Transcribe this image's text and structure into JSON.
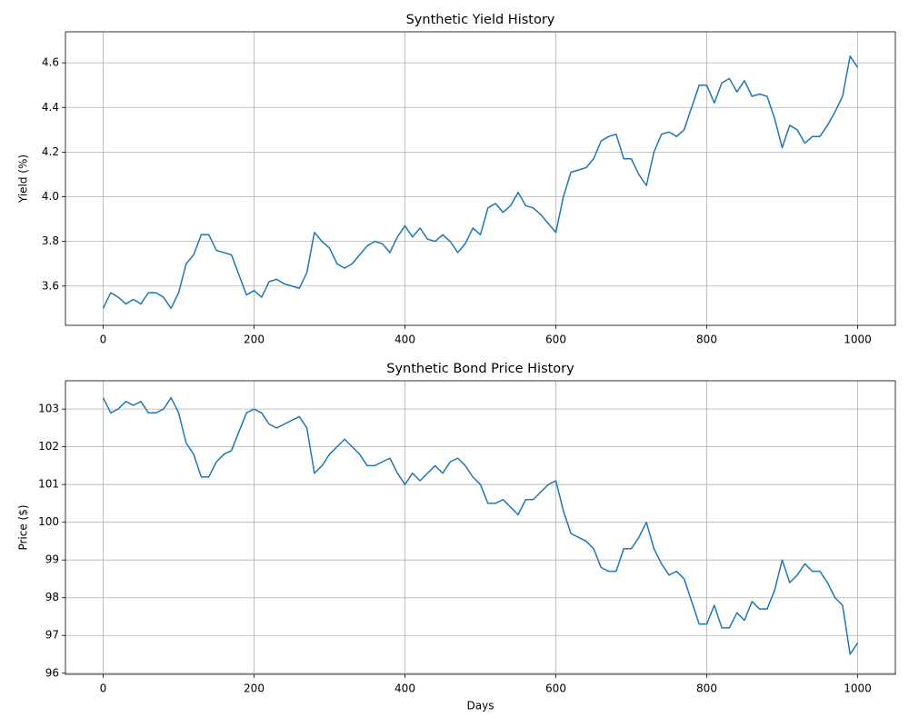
{
  "chart_data": [
    {
      "type": "line",
      "title": "Synthetic Yield History",
      "ylabel": "Yield (%)",
      "color": "#1f77b4",
      "grid": true,
      "x": [
        0,
        10,
        20,
        30,
        40,
        50,
        60,
        70,
        80,
        90,
        100,
        110,
        120,
        130,
        140,
        150,
        160,
        170,
        180,
        190,
        200,
        210,
        220,
        230,
        240,
        250,
        260,
        270,
        280,
        290,
        300,
        310,
        320,
        330,
        340,
        350,
        360,
        370,
        380,
        390,
        400,
        410,
        420,
        430,
        440,
        450,
        460,
        470,
        480,
        490,
        500,
        510,
        520,
        530,
        540,
        550,
        560,
        570,
        580,
        590,
        600,
        610,
        620,
        630,
        640,
        650,
        660,
        670,
        680,
        690,
        700,
        710,
        720,
        730,
        740,
        750,
        760,
        770,
        780,
        790,
        800,
        810,
        820,
        830,
        840,
        850,
        860,
        870,
        880,
        890,
        900,
        910,
        920,
        930,
        940,
        950,
        960,
        970,
        980,
        990,
        1000
      ],
      "values": [
        3.5,
        3.57,
        3.55,
        3.52,
        3.54,
        3.52,
        3.57,
        3.57,
        3.55,
        3.5,
        3.57,
        3.7,
        3.74,
        3.83,
        3.83,
        3.76,
        3.75,
        3.74,
        3.65,
        3.56,
        3.58,
        3.55,
        3.62,
        3.63,
        3.61,
        3.6,
        3.59,
        3.66,
        3.84,
        3.8,
        3.77,
        3.7,
        3.68,
        3.7,
        3.74,
        3.78,
        3.8,
        3.79,
        3.75,
        3.82,
        3.87,
        3.82,
        3.86,
        3.81,
        3.8,
        3.83,
        3.8,
        3.75,
        3.79,
        3.86,
        3.83,
        3.95,
        3.97,
        3.93,
        3.96,
        4.02,
        3.96,
        3.95,
        3.92,
        3.88,
        3.84,
        4.0,
        4.11,
        4.12,
        4.13,
        4.17,
        4.25,
        4.27,
        4.28,
        4.17,
        4.17,
        4.1,
        4.05,
        4.2,
        4.28,
        4.29,
        4.27,
        4.3,
        4.4,
        4.5,
        4.5,
        4.42,
        4.51,
        4.53,
        4.47,
        4.52,
        4.45,
        4.46,
        4.45,
        4.35,
        4.22,
        4.32,
        4.3,
        4.24,
        4.27,
        4.27,
        4.32,
        4.38,
        4.45,
        4.63,
        4.58
      ],
      "xlim": [
        -50,
        1050
      ],
      "xticks": [
        0,
        200,
        400,
        600,
        800,
        1000
      ],
      "ylim": [
        3.424,
        4.739
      ],
      "yticks": [
        3.6,
        3.8,
        {
          "value": 4.0,
          "label": "4.0"
        },
        4.2,
        4.4,
        4.6
      ]
    },
    {
      "type": "line",
      "title": "Synthetic Bond Price History",
      "xlabel": "Days",
      "ylabel": "Price ($)",
      "color": "#1f77b4",
      "grid": true,
      "x": [
        0,
        10,
        20,
        30,
        40,
        50,
        60,
        70,
        80,
        90,
        100,
        110,
        120,
        130,
        140,
        150,
        160,
        170,
        180,
        190,
        200,
        210,
        220,
        230,
        240,
        250,
        260,
        270,
        280,
        290,
        300,
        310,
        320,
        330,
        340,
        350,
        360,
        370,
        380,
        390,
        400,
        410,
        420,
        430,
        440,
        450,
        460,
        470,
        480,
        490,
        500,
        510,
        520,
        530,
        540,
        550,
        560,
        570,
        580,
        590,
        600,
        610,
        620,
        630,
        640,
        650,
        660,
        670,
        680,
        690,
        700,
        710,
        720,
        730,
        740,
        750,
        760,
        770,
        780,
        790,
        800,
        810,
        820,
        830,
        840,
        850,
        860,
        870,
        880,
        890,
        900,
        910,
        920,
        930,
        940,
        950,
        960,
        970,
        980,
        990,
        1000
      ],
      "values": [
        103.3,
        102.9,
        103.0,
        103.2,
        103.1,
        103.2,
        102.9,
        102.9,
        103.0,
        103.3,
        102.9,
        102.1,
        101.8,
        101.2,
        101.2,
        101.6,
        101.8,
        101.9,
        102.4,
        102.9,
        103.0,
        102.9,
        102.6,
        102.5,
        102.6,
        102.7,
        102.8,
        102.5,
        101.3,
        101.5,
        101.8,
        102.0,
        102.2,
        102.0,
        101.8,
        101.5,
        101.5,
        101.6,
        101.7,
        101.3,
        101.0,
        101.3,
        101.1,
        101.3,
        101.5,
        101.3,
        101.6,
        101.7,
        101.5,
        101.2,
        101.0,
        100.5,
        100.5,
        100.6,
        100.4,
        100.2,
        100.6,
        100.6,
        100.8,
        101.0,
        101.1,
        100.3,
        99.7,
        99.6,
        99.5,
        99.3,
        98.8,
        98.7,
        98.7,
        99.3,
        99.3,
        99.6,
        100.0,
        99.3,
        98.9,
        98.6,
        98.7,
        98.5,
        97.9,
        97.3,
        97.3,
        97.8,
        97.2,
        97.2,
        97.6,
        97.4,
        97.9,
        97.7,
        97.7,
        98.2,
        99.0,
        98.4,
        98.6,
        98.9,
        98.7,
        98.7,
        98.4,
        98.0,
        97.8,
        96.5,
        96.8
      ],
      "xlim": [
        -50,
        1050
      ],
      "xticks": [
        0,
        200,
        400,
        600,
        800,
        1000
      ],
      "ylim": [
        95.97,
        103.75
      ],
      "yticks": [
        96,
        97,
        98,
        99,
        100,
        101,
        102,
        103
      ]
    }
  ]
}
